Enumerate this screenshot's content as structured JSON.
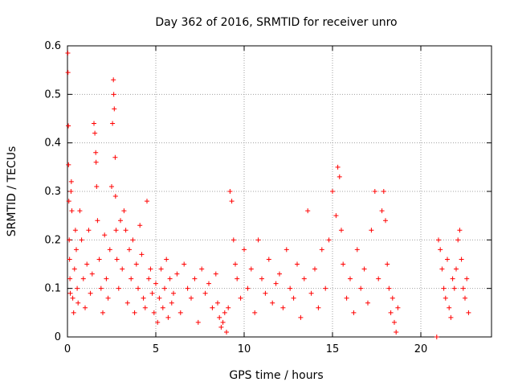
{
  "chart_data": {
    "type": "scatter",
    "title": "Day 362 of 2016, SRMTID for receiver unro",
    "xlabel": "GPS time / hours",
    "ylabel": "SRMTID / TECUs",
    "xlim": [
      0,
      24
    ],
    "ylim": [
      0,
      0.6
    ],
    "xticks": [
      0,
      5,
      10,
      15,
      20
    ],
    "xtick_labels": [
      "0",
      "5",
      "10",
      "15",
      "20"
    ],
    "yticks": [
      0,
      0.1,
      0.2,
      0.3,
      0.4,
      0.5,
      0.6
    ],
    "ytick_labels": [
      "0",
      "0.1",
      "0.2",
      "0.3",
      "0.4",
      "0.5",
      "0.6"
    ],
    "grid": true,
    "marker": "plus",
    "series": [
      {
        "name": "SRMTID",
        "color": "#ff0000",
        "x": [
          0.02,
          0.03,
          0.05,
          0.06,
          0.08,
          0.1,
          0.12,
          0.14,
          0.16,
          0.2,
          0.22,
          0.25,
          0.3,
          0.35,
          0.4,
          0.45,
          0.5,
          0.55,
          0.6,
          0.7,
          0.8,
          0.9,
          1.0,
          1.1,
          1.2,
          1.3,
          1.4,
          1.5,
          1.55,
          1.6,
          1.62,
          1.65,
          1.7,
          1.8,
          1.9,
          2.0,
          2.1,
          2.2,
          2.3,
          2.4,
          2.5,
          2.55,
          2.6,
          2.62,
          2.65,
          2.7,
          2.72,
          2.75,
          2.8,
          2.9,
          3.0,
          3.1,
          3.2,
          3.3,
          3.4,
          3.5,
          3.6,
          3.7,
          3.8,
          3.9,
          4.0,
          4.1,
          4.2,
          4.3,
          4.4,
          4.5,
          4.6,
          4.7,
          4.8,
          4.9,
          5.0,
          5.1,
          5.2,
          5.3,
          5.4,
          5.5,
          5.6,
          5.7,
          5.8,
          5.9,
          6.0,
          6.2,
          6.4,
          6.6,
          6.8,
          7.0,
          7.2,
          7.4,
          7.6,
          7.8,
          8.0,
          8.2,
          8.4,
          8.5,
          8.6,
          8.7,
          8.8,
          8.9,
          9.0,
          9.1,
          9.2,
          9.3,
          9.4,
          9.5,
          9.6,
          9.8,
          10.0,
          10.2,
          10.4,
          10.6,
          10.8,
          11.0,
          11.2,
          11.4,
          11.6,
          11.8,
          12.0,
          12.2,
          12.4,
          12.6,
          12.8,
          13.0,
          13.2,
          13.4,
          13.6,
          13.8,
          14.0,
          14.2,
          14.4,
          14.6,
          14.8,
          15.0,
          15.2,
          15.3,
          15.4,
          15.5,
          15.6,
          15.8,
          16.0,
          16.2,
          16.4,
          16.6,
          16.8,
          17.0,
          17.2,
          17.4,
          17.6,
          17.8,
          17.9,
          18.0,
          18.1,
          18.2,
          18.3,
          18.4,
          18.5,
          18.6,
          18.7,
          20.9,
          21.0,
          21.1,
          21.2,
          21.3,
          21.4,
          21.5,
          21.6,
          21.7,
          21.8,
          21.9,
          22.0,
          22.1,
          22.2,
          22.3,
          22.4,
          22.5,
          22.6,
          22.7
        ],
        "y": [
          0.585,
          0.545,
          0.435,
          0.355,
          0.28,
          0.2,
          0.16,
          0.12,
          0.09,
          0.3,
          0.32,
          0.26,
          0.08,
          0.05,
          0.14,
          0.22,
          0.18,
          0.1,
          0.07,
          0.26,
          0.2,
          0.12,
          0.06,
          0.15,
          0.22,
          0.09,
          0.13,
          0.44,
          0.42,
          0.38,
          0.36,
          0.31,
          0.24,
          0.16,
          0.1,
          0.05,
          0.21,
          0.12,
          0.08,
          0.18,
          0.31,
          0.44,
          0.53,
          0.5,
          0.47,
          0.37,
          0.29,
          0.22,
          0.16,
          0.1,
          0.24,
          0.14,
          0.26,
          0.22,
          0.07,
          0.18,
          0.12,
          0.2,
          0.05,
          0.15,
          0.1,
          0.23,
          0.17,
          0.08,
          0.06,
          0.28,
          0.12,
          0.14,
          0.09,
          0.05,
          0.11,
          0.03,
          0.08,
          0.14,
          0.06,
          0.1,
          0.16,
          0.04,
          0.12,
          0.07,
          0.09,
          0.13,
          0.05,
          0.15,
          0.1,
          0.08,
          0.12,
          0.03,
          0.14,
          0.09,
          0.11,
          0.06,
          0.13,
          0.07,
          0.04,
          0.02,
          0.03,
          0.05,
          0.01,
          0.06,
          0.3,
          0.28,
          0.2,
          0.15,
          0.12,
          0.08,
          0.18,
          0.1,
          0.14,
          0.05,
          0.2,
          0.12,
          0.09,
          0.16,
          0.07,
          0.11,
          0.13,
          0.06,
          0.18,
          0.1,
          0.08,
          0.15,
          0.04,
          0.12,
          0.26,
          0.09,
          0.14,
          0.06,
          0.18,
          0.1,
          0.2,
          0.3,
          0.25,
          0.35,
          0.33,
          0.22,
          0.15,
          0.08,
          0.12,
          0.05,
          0.18,
          0.1,
          0.14,
          0.07,
          0.22,
          0.3,
          0.12,
          0.26,
          0.3,
          0.24,
          0.15,
          0.1,
          0.05,
          0.08,
          0.03,
          0.01,
          0.06,
          0.0,
          0.2,
          0.18,
          0.14,
          0.1,
          0.08,
          0.16,
          0.06,
          0.04,
          0.12,
          0.1,
          0.14,
          0.2,
          0.22,
          0.16,
          0.1,
          0.08,
          0.12,
          0.05
        ]
      }
    ]
  }
}
